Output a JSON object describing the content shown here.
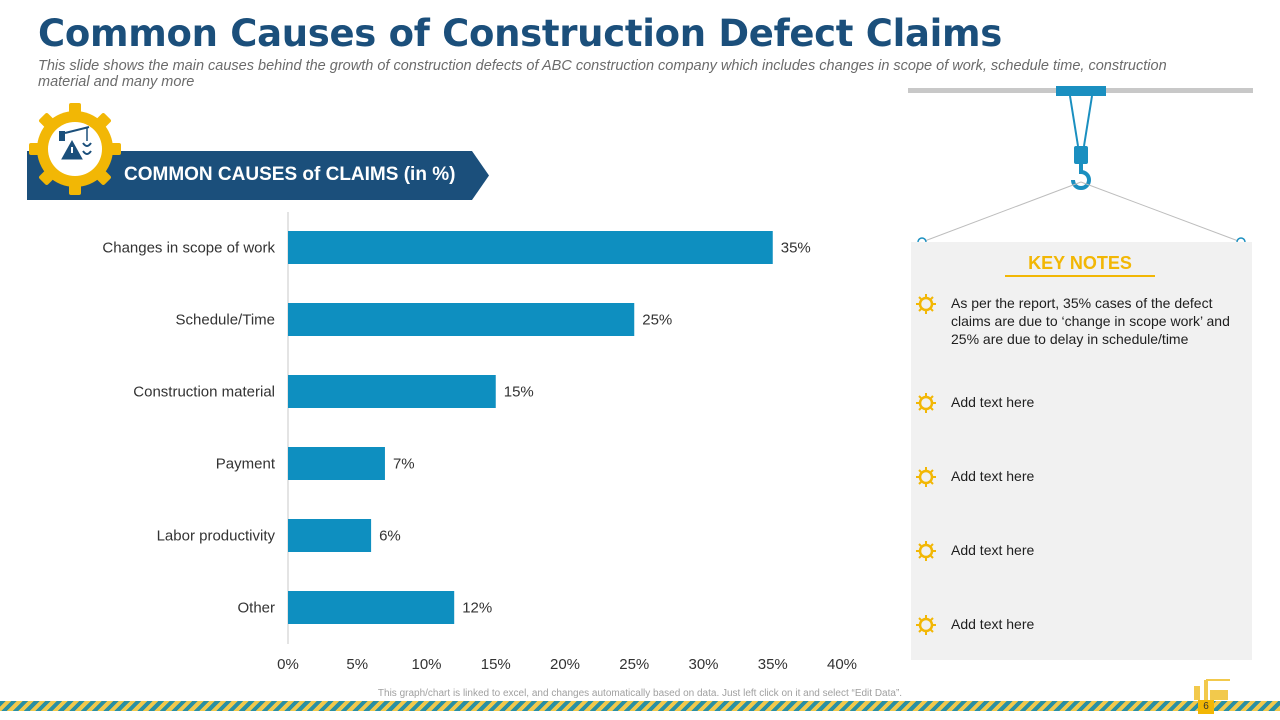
{
  "header": {
    "title": "Common Causes of Construction Defect Claims",
    "subtitle": "This slide shows the main causes behind the growth  of construction defects of ABC construction company which  includes changes in scope of work,  schedule time, construction material and many more"
  },
  "banner": {
    "label": "COMMON CAUSES of CLAIMS (in %)"
  },
  "chart_data": {
    "type": "bar",
    "orientation": "horizontal",
    "title": "COMMON CAUSES of CLAIMS (in %)",
    "categories": [
      "Changes in scope of work",
      "Schedule/Time",
      "Construction material",
      "Payment",
      "Labor productivity",
      "Other"
    ],
    "values": [
      35,
      25,
      15,
      7,
      6,
      12
    ],
    "data_labels": [
      "35%",
      "25%",
      "15%",
      "7%",
      "6%",
      "12%"
    ],
    "xlim": [
      0,
      40
    ],
    "x_ticks": [
      0,
      5,
      10,
      15,
      20,
      25,
      30,
      35,
      40
    ],
    "x_tick_labels": [
      "0%",
      "5%",
      "10%",
      "15%",
      "20%",
      "25%",
      "30%",
      "35%",
      "40%"
    ],
    "bar_color": "#0e8fc0",
    "grid": false
  },
  "key_notes": {
    "title": "KEY NOTES",
    "items": [
      "As per the report, 35% cases of the defect claims are due to ‘change in scope work’ and 25% are due to delay in schedule/time",
      "Add text here",
      "Add text here",
      "Add text here",
      "Add text here"
    ]
  },
  "footer": {
    "note": "This graph/chart is linked to excel,  and changes automatically based on data. Just left click on it and select “Edit Data”.",
    "page_number": "6"
  },
  "colors": {
    "navy": "#1b4f7b",
    "accent_blue": "#0e8fc0",
    "yellow": "#f2b705"
  }
}
